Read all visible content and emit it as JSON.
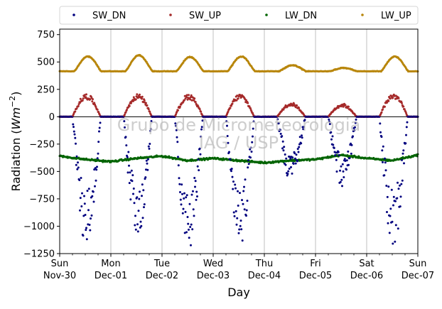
{
  "chart_data": {
    "type": "scatter",
    "title": "",
    "xlabel": "Day",
    "ylabel": "Radiation (Wm⁻²)",
    "ylabel_parts": {
      "main": "Radiation (",
      "unit": "Wm",
      "exponent": "−2",
      "close": ")"
    },
    "watermark": [
      "Grupo de Micrometeorologia",
      "IAG / USP"
    ],
    "grid": "vertical",
    "legend_placement": "top (above plot, 4 columns)",
    "xlim": [
      0,
      7
    ],
    "ylim": [
      -1250,
      800
    ],
    "yticks": [
      750,
      500,
      250,
      0,
      -250,
      -500,
      -750,
      -1000,
      -1250
    ],
    "ytick_labels": [
      "750",
      "500",
      "250",
      "0",
      "−250",
      "−500",
      "−750",
      "−1000",
      "−1250"
    ],
    "xticks": [
      {
        "value": 0,
        "day": "Sun",
        "date": "Nov-30"
      },
      {
        "value": 1,
        "day": "Mon",
        "date": "Dec-01"
      },
      {
        "value": 2,
        "day": "Tue",
        "date": "Dec-02"
      },
      {
        "value": 3,
        "day": "Wed",
        "date": "Dec-03"
      },
      {
        "value": 4,
        "day": "Thu",
        "date": "Dec-04"
      },
      {
        "value": 5,
        "day": "Fri",
        "date": "Dec-05"
      },
      {
        "value": 6,
        "day": "Sat",
        "date": "Dec-06"
      },
      {
        "value": 7,
        "day": "Sun",
        "date": "Dec-07"
      }
    ],
    "series": [
      {
        "name": "SW_DN",
        "color": "#00007f",
        "description": "Downward shortwave (negative sign), daily minima per day",
        "daily_min": [
          -1200,
          -1140,
          -1250,
          -1180,
          -600,
          -640,
          -1200
        ],
        "night_value": 0
      },
      {
        "name": "SW_UP",
        "color": "#a52a2a",
        "description": "Upward shortwave, daily maxima per day",
        "daily_max": [
          210,
          210,
          210,
          210,
          130,
          120,
          215
        ],
        "night_value": 0
      },
      {
        "name": "LW_DN",
        "color": "#006400",
        "description": "Downward longwave (negative sign), approx. range",
        "x": [
          0,
          0.5,
          1,
          1.5,
          2,
          2.5,
          3,
          3.5,
          4,
          4.5,
          5,
          5.5,
          6,
          6.5,
          7
        ],
        "y": [
          -360,
          -390,
          -410,
          -380,
          -360,
          -400,
          -380,
          -400,
          -420,
          -400,
          -390,
          -350,
          -380,
          -400,
          -350
        ]
      },
      {
        "name": "LW_UP",
        "color": "#b8860b",
        "description": "Upward longwave, base ~410 with daily peaks",
        "daily_max": [
          550,
          560,
          545,
          550,
          470,
          445,
          550
        ],
        "baseline": 415
      }
    ]
  }
}
